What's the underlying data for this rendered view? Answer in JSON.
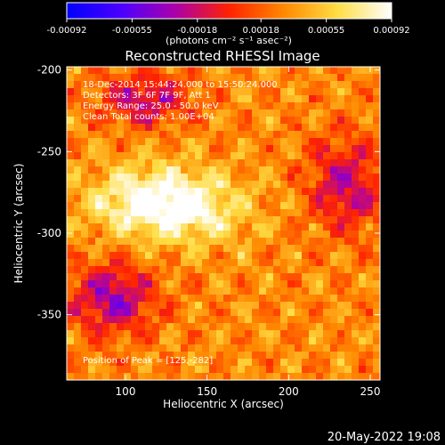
{
  "chart_data": {
    "type": "heatmap",
    "title": "Reconstructed RHESSI Image",
    "colorbar": {
      "ticks": [
        "-0.00092",
        "-0.00055",
        "-0.00018",
        "0.00018",
        "0.00055",
        "0.00092"
      ],
      "range": [
        -0.00092,
        0.00092
      ],
      "units": "(photons cm⁻² s⁻¹ asec⁻²)",
      "colors": [
        "#0000ff",
        "#4b00ff",
        "#aa00aa",
        "#ff2200",
        "#ff8800",
        "#ffdd44",
        "#ffffff"
      ]
    },
    "xlabel": "Heliocentric X (arcsec)",
    "ylabel": "Heliocentric Y (arcsec)",
    "xlim": [
      64,
      256
    ],
    "ylim": [
      -390,
      -198
    ],
    "xticks": [
      100,
      150,
      200,
      250
    ],
    "yticks": [
      -200,
      -250,
      -300,
      -350
    ],
    "annotations": [
      "18-Dec-2014 15:44:24.000 to 15:50:24.000",
      "Detectors: 3F 6F 7F 9F, Att 1",
      "Energy Range: 25.0 - 50.0 keV",
      "Clean    Total counts: 1.00E+04"
    ],
    "peak_label": "Position of Peak = [125,-282]",
    "peak": [
      125,
      -282
    ],
    "grid": false
  },
  "footer": {
    "timestamp": "20-May-2022 19:08"
  }
}
